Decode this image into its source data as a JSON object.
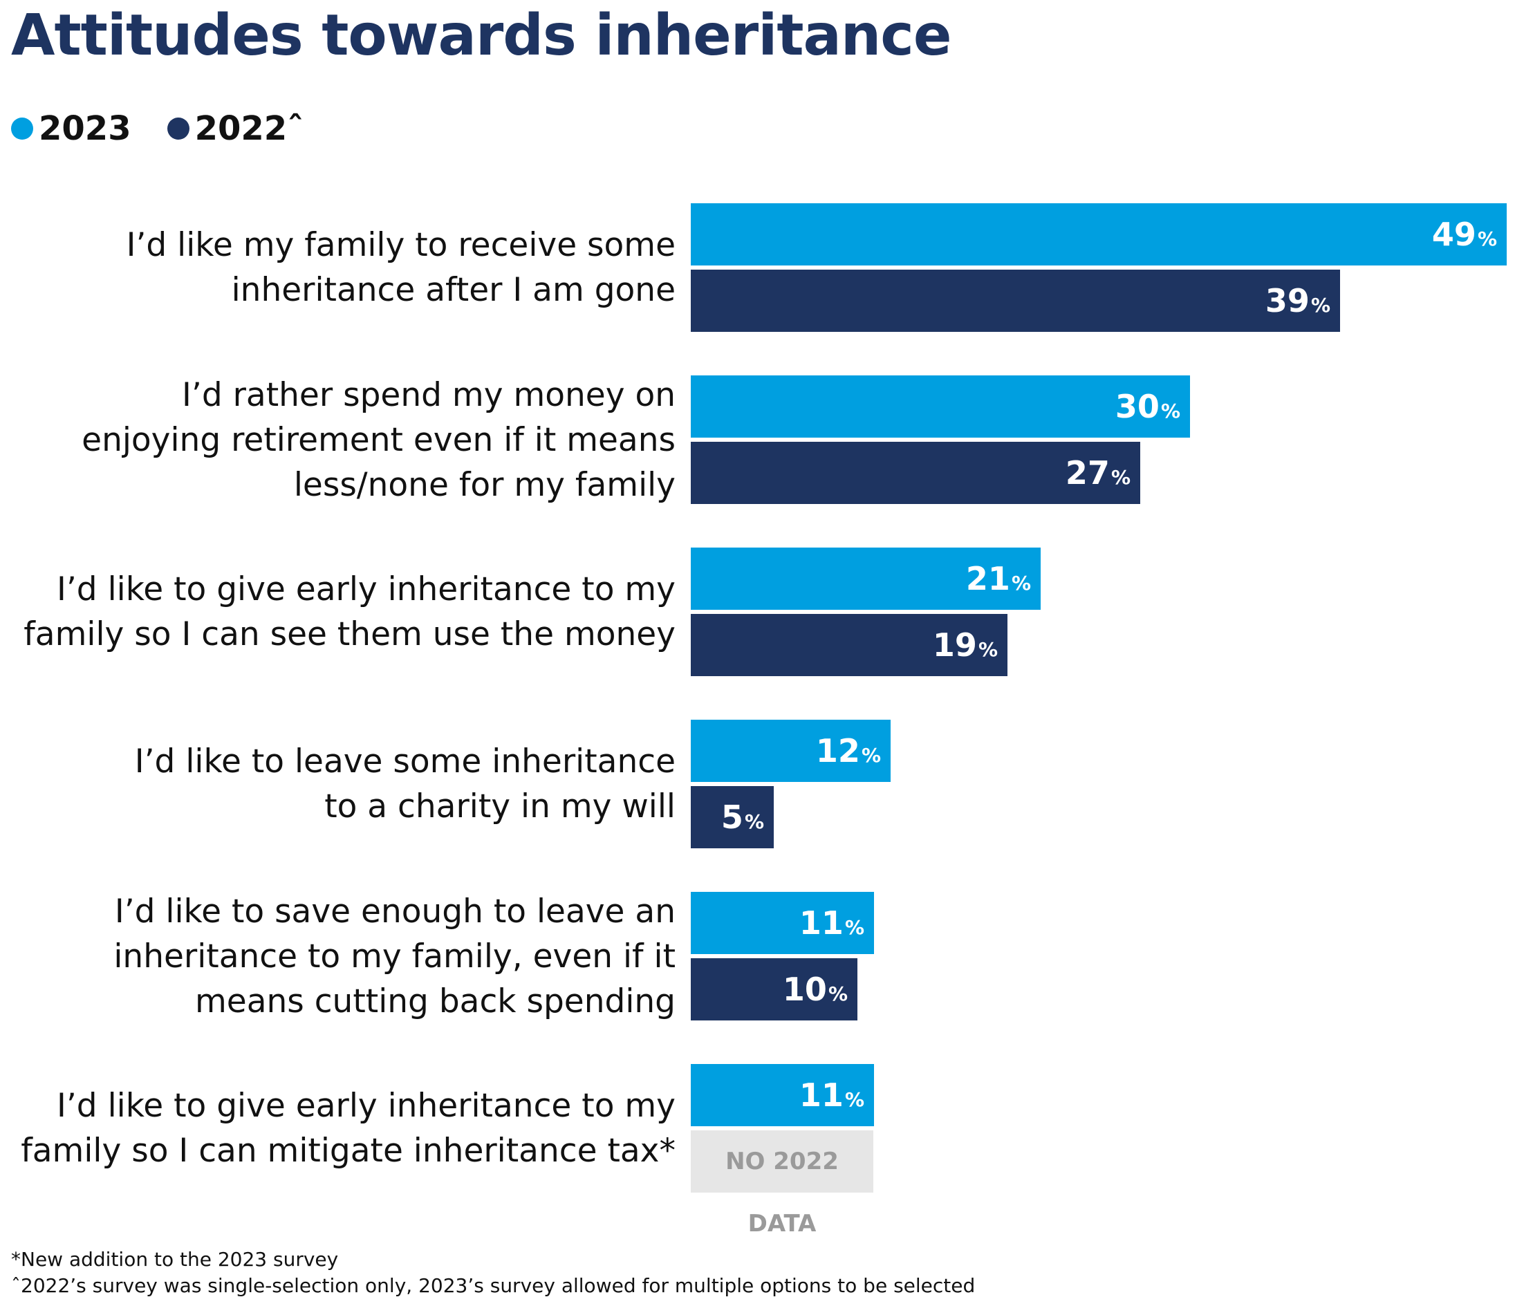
{
  "title": "Attitudes towards inheritance",
  "legend": [
    {
      "label": "2023",
      "color": "#009fe0"
    },
    {
      "label": "2022ˆ",
      "color": "#1e3461"
    }
  ],
  "chart_data": {
    "type": "bar",
    "orientation": "horizontal",
    "title": "Attitudes towards inheritance",
    "unit": "%",
    "categories": [
      [
        "I’d like my family to receive some",
        "inheritance after I am gone"
      ],
      [
        "I’d rather spend my money on",
        "enjoying retirement even if it means",
        "less/none for my family"
      ],
      [
        "I’d like to give early inheritance to my",
        "family so I can see them use the money"
      ],
      [
        "I’d like to leave some inheritance",
        "to a charity in my will"
      ],
      [
        "I’d like to save enough to leave an",
        "inheritance to my family, even if it",
        "means cutting back spending"
      ],
      [
        "I’d like to give early inheritance to my",
        "family so I can mitigate inheritance tax*"
      ]
    ],
    "series": [
      {
        "name": "2023",
        "color": "#009fe0",
        "values": [
          49,
          30,
          21,
          12,
          11,
          11
        ]
      },
      {
        "name": "2022ˆ",
        "color": "#1e3461",
        "values": [
          39,
          27,
          19,
          5,
          10,
          null
        ]
      }
    ],
    "no_data_label": "NO 2022 DATA",
    "legend_position": "top-left",
    "grid": false
  },
  "footnotes": [
    "*New addition to the 2023 survey",
    "ˆ2022’s survey was single-selection only, 2023’s survey allowed for multiple options to be selected"
  ]
}
